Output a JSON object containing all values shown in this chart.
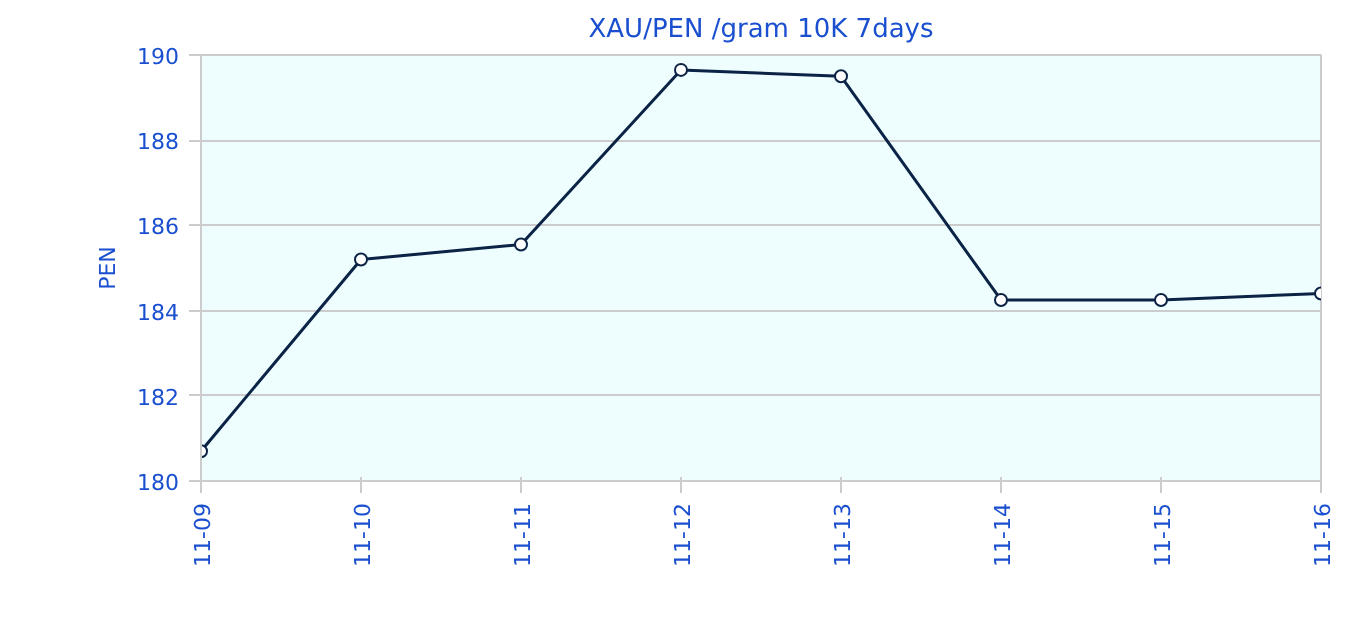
{
  "chart_data": {
    "type": "line",
    "title": "XAU/PEN /gram 10K 7days",
    "ylabel": "PEN",
    "categories": [
      "11-09",
      "11-10",
      "11-11",
      "11-12",
      "11-13",
      "11-14",
      "11-15",
      "11-16"
    ],
    "series": [
      {
        "color": "#0b2345",
        "values": [
          180.7,
          185.2,
          185.55,
          189.65,
          189.5,
          184.25,
          184.25,
          184.4
        ]
      }
    ],
    "ylim": [
      180,
      190
    ],
    "yticks": [
      180,
      182,
      184,
      186,
      188,
      190
    ],
    "grid": "y",
    "marker": "circle",
    "line_style": "solid"
  }
}
